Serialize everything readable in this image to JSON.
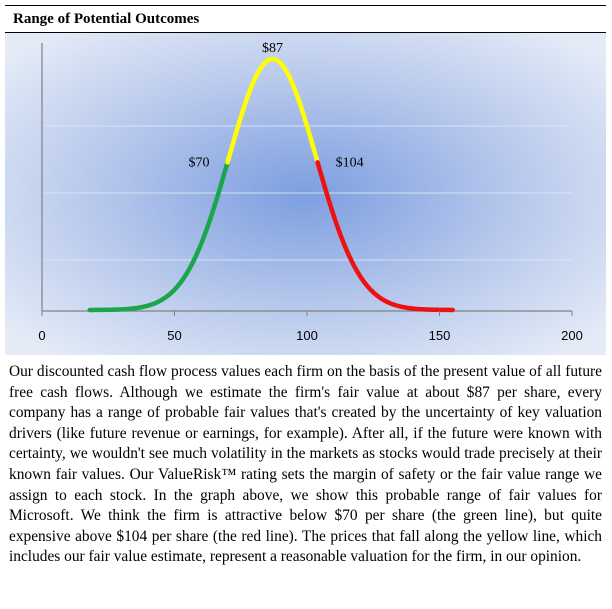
{
  "title": "Range of Potential Outcomes",
  "chart_data": {
    "type": "line",
    "title": "",
    "xlabel": "",
    "ylabel": "",
    "xlim": [
      0,
      200
    ],
    "x_ticks": [
      0,
      50,
      100,
      150,
      200
    ],
    "distribution": {
      "mean": 87,
      "std_dev": 16.5,
      "x_start": 18,
      "x_end": 155
    },
    "series": [
      {
        "x_range": [
          18,
          70
        ],
        "color": "#1aa64b"
      },
      {
        "x_range": [
          70,
          104
        ],
        "color": "#ffff00"
      },
      {
        "x_range": [
          104,
          155
        ],
        "color": "#ee1111"
      }
    ],
    "annotations": [
      {
        "text": "$70",
        "x": 70
      },
      {
        "text": "$87",
        "x": 87
      },
      {
        "text": "$104",
        "x": 104
      }
    ],
    "grid": true,
    "background": "radial-gradient-blue"
  },
  "body_text": "Our discounted cash flow process values each firm on the basis of the present value of all future free cash flows. Although we estimate the firm's fair value at about $87 per share, every company has a range of probable fair values that's created by the uncertainty of key valuation drivers (like future revenue or earnings, for example). After all, if the future were known with certainty, we wouldn't see much volatility in the markets as stocks would trade precisely at their known fair values. Our ValueRisk™ rating sets the margin of safety or the fair value range we assign to each stock. In the graph above, we show this probable range of fair values for Microsoft. We think the firm is attractive below $70 per share (the green line), but quite expensive above $104 per share (the red line). The prices that fall along the yellow line, which includes our fair value estimate, represent a reasonable valuation for the firm, in our opinion."
}
